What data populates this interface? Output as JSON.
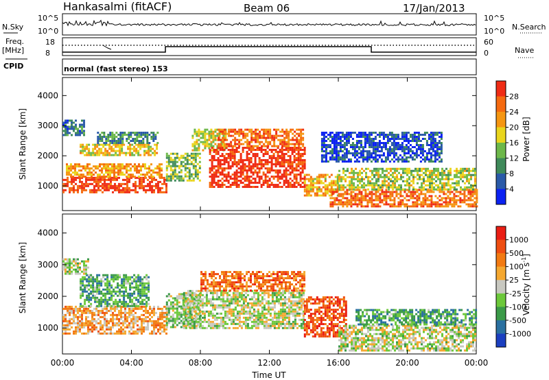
{
  "header": {
    "station": "Hankasalmi (fitACF)",
    "beam": "Beam 06",
    "date": "17/Jan/2013"
  },
  "summary_panels": {
    "nsky_label": "N.Sky",
    "nsearch_label": "N.Search",
    "freq_label_line1": "Freq.",
    "freq_label_line2": "[MHz]",
    "nave_label": "Nave",
    "cpid_label": "CPID",
    "cpid_text": "normal (fast stereo) 153",
    "nsky_ticks": [
      "10^5",
      "10^0"
    ],
    "freq_ticks": [
      "18",
      "8"
    ],
    "nave_ticks": [
      "60",
      "0"
    ]
  },
  "chart_data": [
    {
      "type": "heatmap",
      "name": "power",
      "ylabel": "Slant Range [km]",
      "xlabel": "",
      "xlim": [
        0,
        24
      ],
      "ylim": [
        180,
        4600
      ],
      "xticks": [
        "00:00",
        "04:00",
        "08:00",
        "12:00",
        "16:00",
        "20:00",
        "00:00"
      ],
      "yticks": [
        "1000",
        "2000",
        "3000",
        "4000"
      ],
      "colorbar": {
        "label": "Power [dB]",
        "ticks": [
          "4",
          "8",
          "12",
          "16",
          "20",
          "24",
          "28"
        ],
        "colors": [
          "#0b22f2",
          "#2a5aa8",
          "#3f8a5a",
          "#6db84a",
          "#e9d51d",
          "#f59612",
          "#f56a10",
          "#ef2c15"
        ]
      },
      "regions": [
        {
          "start": 0.0,
          "end": 6.0,
          "range_low": 800,
          "range_high": 1300,
          "level": 0.92
        },
        {
          "start": 0.2,
          "end": 5.8,
          "range_low": 1300,
          "range_high": 1750,
          "level": 0.7
        },
        {
          "start": 1.0,
          "end": 5.5,
          "range_low": 2000,
          "range_high": 2400,
          "level": 0.6
        },
        {
          "start": 0.0,
          "end": 1.2,
          "range_low": 2700,
          "range_high": 3200,
          "level": 0.25
        },
        {
          "start": 2.0,
          "end": 5.5,
          "range_low": 2400,
          "range_high": 2800,
          "level": 0.3
        },
        {
          "start": 6.0,
          "end": 8.0,
          "range_low": 1200,
          "range_high": 2100,
          "level": 0.45
        },
        {
          "start": 7.5,
          "end": 9.5,
          "range_low": 2200,
          "range_high": 2900,
          "level": 0.55
        },
        {
          "start": 8.5,
          "end": 14.0,
          "range_low": 1000,
          "range_high": 2300,
          "level": 0.95
        },
        {
          "start": 9.0,
          "end": 14.0,
          "range_low": 2300,
          "range_high": 2900,
          "level": 0.8
        },
        {
          "start": 14.0,
          "end": 16.0,
          "range_low": 700,
          "range_high": 1400,
          "level": 0.65
        },
        {
          "start": 15.5,
          "end": 24.0,
          "range_low": 300,
          "range_high": 900,
          "level": 0.8
        },
        {
          "start": 16.0,
          "end": 24.0,
          "range_low": 900,
          "range_high": 1600,
          "level": 0.5
        },
        {
          "start": 15.0,
          "end": 22.0,
          "range_low": 1800,
          "range_high": 2800,
          "level": 0.15
        }
      ]
    },
    {
      "type": "heatmap",
      "name": "velocity",
      "ylabel": "Slant Range [km]",
      "xlabel": "Time UT",
      "xlim": [
        0,
        24
      ],
      "ylim": [
        180,
        4600
      ],
      "xticks": [
        "00:00",
        "04:00",
        "08:00",
        "12:00",
        "16:00",
        "20:00",
        "00:00"
      ],
      "yticks": [
        "1000",
        "2000",
        "3000",
        "4000"
      ],
      "colorbar": {
        "label": "Velocity [m s^-1]",
        "ticks": [
          "1000",
          "500",
          "100",
          "25",
          "-25",
          "-100",
          "-500",
          "-1000"
        ],
        "colors": [
          "#1b3fc0",
          "#2a70a0",
          "#3b9a48",
          "#6cc83a",
          "#c8c8c0",
          "#f5a830",
          "#f27a12",
          "#ef4e12",
          "#ea1e14"
        ]
      },
      "regions": [
        {
          "start": 0.0,
          "end": 6.0,
          "range_low": 800,
          "range_high": 1700,
          "level": 0.65
        },
        {
          "start": 1.0,
          "end": 5.0,
          "range_low": 1700,
          "range_high": 2700,
          "level": 0.3
        },
        {
          "start": 0.0,
          "end": 1.5,
          "range_low": 2700,
          "range_high": 3200,
          "level": 0.45
        },
        {
          "start": 6.0,
          "end": 8.0,
          "range_low": 1000,
          "range_high": 2100,
          "level": 0.4
        },
        {
          "start": 7.0,
          "end": 14.0,
          "range_low": 1000,
          "range_high": 2200,
          "level": 0.47
        },
        {
          "start": 8.0,
          "end": 14.0,
          "range_low": 2200,
          "range_high": 2800,
          "level": 0.75
        },
        {
          "start": 14.0,
          "end": 16.5,
          "range_low": 700,
          "range_high": 2000,
          "level": 0.85
        },
        {
          "start": 16.0,
          "end": 24.0,
          "range_low": 300,
          "range_high": 1100,
          "level": 0.47
        },
        {
          "start": 17.0,
          "end": 24.0,
          "range_low": 1100,
          "range_high": 1600,
          "level": 0.3
        }
      ]
    }
  ]
}
